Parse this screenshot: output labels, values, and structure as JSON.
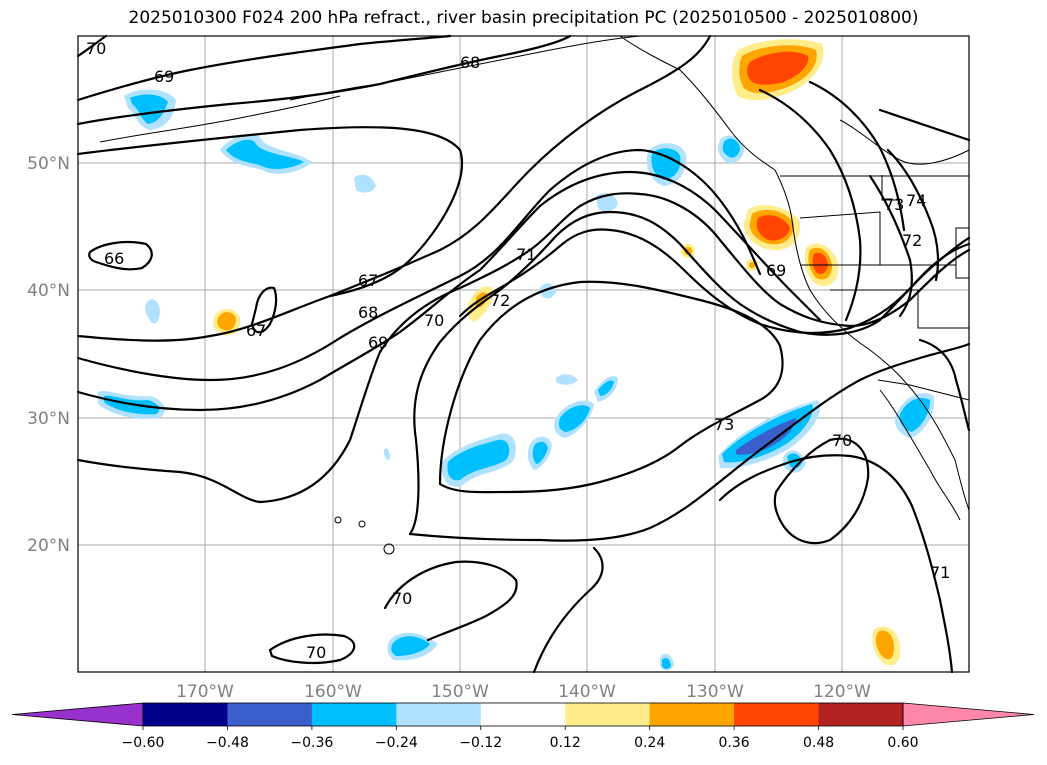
{
  "title": "2025010300 F024 200 hPa refract., river basin precipitation PC (2025010500 - 2025010800)",
  "map": {
    "lat_labels": [
      "50°N",
      "40°N",
      "30°N",
      "20°N"
    ],
    "lon_labels": [
      "170°W",
      "160°W",
      "150°W",
      "140°W",
      "130°W",
      "120°W"
    ],
    "contour_labels": [
      "70",
      "69",
      "68",
      "66",
      "67",
      "67",
      "68",
      "69",
      "70",
      "71",
      "72",
      "73",
      "74",
      "72",
      "69",
      "73",
      "70",
      "71",
      "70",
      "70"
    ]
  },
  "colorbar": {
    "ticks": [
      "−0.60",
      "−0.48",
      "−0.36",
      "−0.24",
      "−0.12",
      "0.12",
      "0.24",
      "0.36",
      "0.48",
      "0.60"
    ],
    "colors": [
      "#9932cc",
      "#00008b",
      "#3a5fcd",
      "#00bfff",
      "#b0e2ff",
      "#ffffff",
      "#ffec8b",
      "#ffa500",
      "#ff4500",
      "#b22222",
      "#ff88aa"
    ]
  }
}
